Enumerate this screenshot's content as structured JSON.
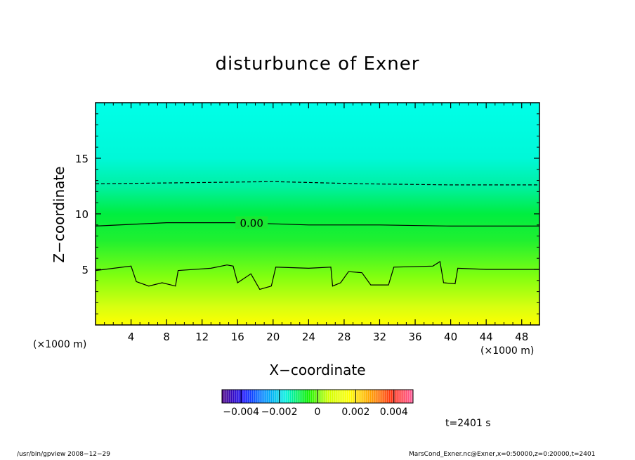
{
  "title": "disturbunce of Exner",
  "xlabel": "X−coordinate",
  "ylabel": "Z−coordinate",
  "x_unit_left": "(×1000 m)",
  "x_unit_right": "(×1000 m)",
  "time_label": "t=2401 s",
  "footer_left": "/usr/bin/gpview   2008−12−29",
  "footer_right": "MarsCond_Exner.nc@Exner,x=0:50000,z=0:20000,t=2401",
  "chart_data": {
    "type": "heatmap",
    "title": "disturbunce of Exner",
    "xlabel": "X−coordinate",
    "ylabel": "Z−coordinate",
    "xlim": [
      0,
      50
    ],
    "ylim": [
      0,
      20
    ],
    "x_ticks": [
      4,
      8,
      12,
      16,
      20,
      24,
      28,
      32,
      36,
      40,
      44,
      48
    ],
    "y_ticks": [
      5,
      10,
      15
    ],
    "z_profile": [
      {
        "z": 0,
        "value": 0.0025
      },
      {
        "z": 2,
        "value": 0.0018
      },
      {
        "z": 5,
        "value": 0.001
      },
      {
        "z": 9,
        "value": 0.0
      },
      {
        "z": 12.5,
        "value": -0.001
      },
      {
        "z": 15,
        "value": -0.0014
      },
      {
        "z": 20,
        "value": -0.0016
      }
    ],
    "contours": [
      {
        "level": "0.00",
        "style": "solid",
        "label_x": 17.5,
        "points": [
          [
            0,
            8.9
          ],
          [
            8,
            9.2
          ],
          [
            16,
            9.2
          ],
          [
            24,
            9.0
          ],
          [
            32,
            9.0
          ],
          [
            40,
            8.9
          ],
          [
            50,
            8.9
          ]
        ]
      },
      {
        "level": "negative",
        "style": "dashed",
        "points": [
          [
            0,
            12.7
          ],
          [
            10,
            12.8
          ],
          [
            20,
            12.9
          ],
          [
            30,
            12.7
          ],
          [
            40,
            12.6
          ],
          [
            50,
            12.6
          ]
        ]
      },
      {
        "level": "positive",
        "style": "solid",
        "points": [
          [
            0,
            4.9
          ],
          [
            4,
            5.3
          ],
          [
            4.6,
            3.9
          ],
          [
            6,
            3.5
          ],
          [
            7.5,
            3.8
          ],
          [
            9,
            3.5
          ],
          [
            9.3,
            4.9
          ],
          [
            13,
            5.1
          ],
          [
            14.8,
            5.4
          ],
          [
            15.5,
            5.3
          ],
          [
            16,
            3.8
          ],
          [
            17.5,
            4.6
          ],
          [
            18.5,
            3.2
          ],
          [
            19.8,
            3.5
          ],
          [
            20.3,
            5.2
          ],
          [
            24,
            5.1
          ],
          [
            26.5,
            5.2
          ],
          [
            26.7,
            3.5
          ],
          [
            27.6,
            3.8
          ],
          [
            28.5,
            4.8
          ],
          [
            30,
            4.7
          ],
          [
            31,
            3.6
          ],
          [
            33,
            3.6
          ],
          [
            33.6,
            5.2
          ],
          [
            38,
            5.3
          ],
          [
            38.8,
            5.7
          ],
          [
            39.2,
            3.8
          ],
          [
            40.5,
            3.7
          ],
          [
            40.8,
            5.1
          ],
          [
            44,
            5.0
          ],
          [
            48,
            5.0
          ],
          [
            50,
            5.0
          ]
        ]
      }
    ],
    "colorbar": {
      "ticks": [
        "−0.004",
        "−0.002",
        "0",
        "0.002",
        "0.004"
      ],
      "tick_values": [
        -0.004,
        -0.002,
        0,
        0.002,
        0.004
      ],
      "range": [
        -0.005,
        0.005
      ],
      "colors": [
        "#4b0082",
        "#1a10ff",
        "#0090ff",
        "#00f0e0",
        "#00f000",
        "#d0ff00",
        "#ffff00",
        "#ffa000",
        "#ff3010",
        "#ff60a0"
      ]
    }
  }
}
